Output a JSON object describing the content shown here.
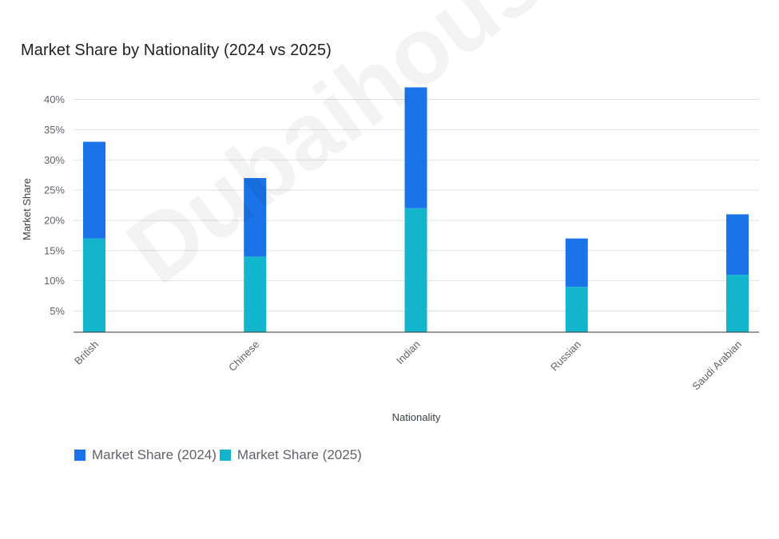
{
  "chart_data": {
    "type": "bar",
    "stacked": true,
    "title": "Market Share by Nationality (2024 vs 2025)",
    "xlabel": "Nationality",
    "ylabel": "Market Share",
    "categories": [
      "British",
      "Chinese",
      "Indian",
      "Russian",
      "Saudi Arabian"
    ],
    "series": [
      {
        "name": "Market Share (2025)",
        "color": "#12b5cb",
        "values": [
          17,
          14,
          22,
          9,
          11
        ]
      },
      {
        "name": "Market Share (2024)",
        "color": "#1a73e8",
        "values": [
          16,
          13,
          20,
          8,
          10
        ]
      }
    ],
    "ylim": [
      1.5,
      42
    ],
    "yticks": [
      5,
      10,
      15,
      20,
      25,
      30,
      35,
      40
    ],
    "ytick_labels": [
      "5%",
      "10%",
      "15%",
      "20%",
      "25%",
      "30%",
      "35%",
      "40%"
    ],
    "grid": true,
    "legend_position": "bottom-left"
  },
  "legend": {
    "items": [
      {
        "label": "Market Share (2024)",
        "color": "#1a73e8"
      },
      {
        "label": "Market Share (2025)",
        "color": "#12b5cb"
      }
    ]
  },
  "watermark": "Dubaihousing"
}
